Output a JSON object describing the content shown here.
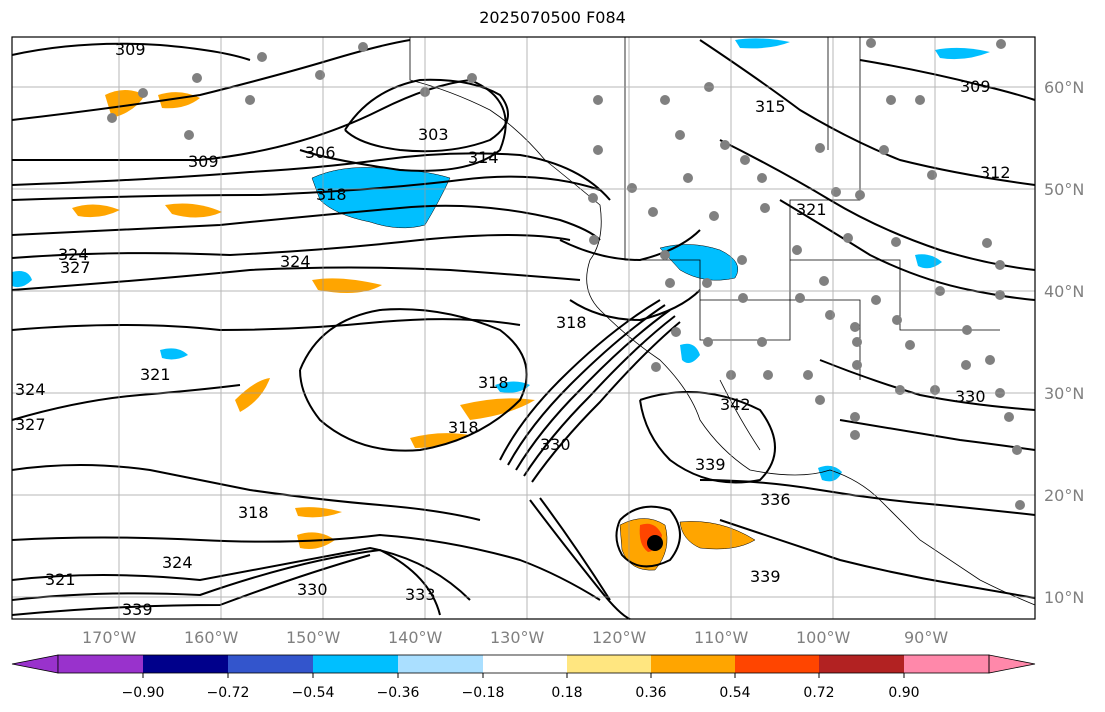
{
  "title": "2025070500 F084",
  "map": {
    "projection": "cylindrical",
    "longitude_labels": [
      "170°W",
      "160°W",
      "150°W",
      "140°W",
      "130°W",
      "120°W",
      "110°W",
      "100°W",
      "90°W"
    ],
    "latitude_labels": [
      "60°N",
      "50°N",
      "40°N",
      "30°N",
      "20°N",
      "10°N"
    ],
    "contour_labels": [
      "309",
      "303",
      "306",
      "309",
      "318",
      "314",
      "315",
      "309",
      "312",
      "321",
      "324",
      "327",
      "324",
      "321",
      "318",
      "318",
      "318",
      "318",
      "330",
      "327",
      "324",
      "321",
      "324",
      "330",
      "333",
      "339",
      "339",
      "336",
      "339",
      "342",
      "330"
    ],
    "shading_colors": {
      "negative_strong": "#00bfff",
      "negative_weak": "#aadfff",
      "positive_weak": "#ffe680",
      "positive_mid": "#ffa500",
      "positive_strong": "#ff4500"
    },
    "gray_station_marker_color": "#808080"
  },
  "colorbar": {
    "tick_labels": [
      "−0.90",
      "−0.72",
      "−0.54",
      "−0.36",
      "−0.18",
      "0.18",
      "0.36",
      "0.54",
      "0.72",
      "0.90"
    ],
    "colors": [
      "#9932cc",
      "#00008b",
      "#3355cc",
      "#00bfff",
      "#aadfff",
      "#ffffff",
      "#ffe680",
      "#ffa500",
      "#ff4500",
      "#b22222",
      "#ff88aa"
    ]
  }
}
